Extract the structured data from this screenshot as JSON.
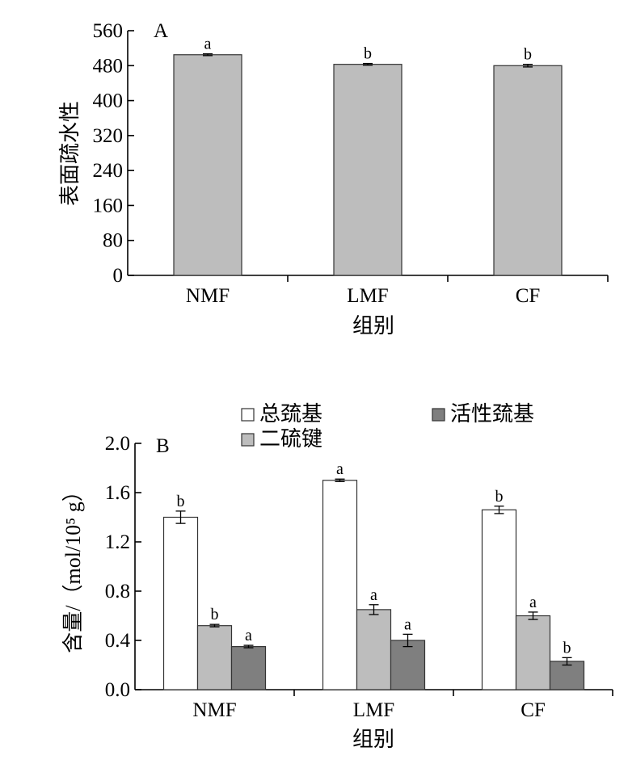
{
  "chart_data": [
    {
      "panel": "A",
      "type": "bar",
      "categories": [
        "NMF",
        "LMF",
        "CF"
      ],
      "series": [
        {
          "values": [
            505,
            483,
            480
          ],
          "errors": [
            2,
            2,
            3
          ],
          "significance": [
            "a",
            "b",
            "b"
          ],
          "color": "#bdbdbd"
        }
      ],
      "ylabel": "表面疏水性",
      "xlabel": "组别",
      "ylim": [
        0,
        560
      ],
      "yticks": [
        "0",
        "80",
        "160",
        "240",
        "320",
        "400",
        "480",
        "560"
      ],
      "grid": false,
      "legend": "none"
    },
    {
      "panel": "B",
      "type": "bar",
      "categories": [
        "NMF",
        "LMF",
        "CF"
      ],
      "series": [
        {
          "name": "总巯基",
          "values": [
            1.4,
            1.7,
            1.46
          ],
          "errors": [
            0.05,
            0.01,
            0.03
          ],
          "significance": [
            "b",
            "a",
            "b"
          ],
          "color": "#ffffff"
        },
        {
          "name": "二硫键",
          "values": [
            0.52,
            0.65,
            0.6
          ],
          "errors": [
            0.01,
            0.04,
            0.03
          ],
          "significance": [
            "b",
            "a",
            "a"
          ],
          "color": "#bdbdbd"
        },
        {
          "name": "活性巯基",
          "values": [
            0.35,
            0.4,
            0.23
          ],
          "errors": [
            0.01,
            0.05,
            0.03
          ],
          "significance": [
            "a",
            "a",
            "b"
          ],
          "color": "#7f7f7f"
        }
      ],
      "ylabel": "含量/（mol/10⁵ g）",
      "xlabel": "组别",
      "ylim": [
        0,
        2.0
      ],
      "yticks": [
        "0.0",
        "0.4",
        "0.8",
        "1.2",
        "1.6",
        "2.0"
      ],
      "grid": false,
      "legend": "top"
    }
  ]
}
